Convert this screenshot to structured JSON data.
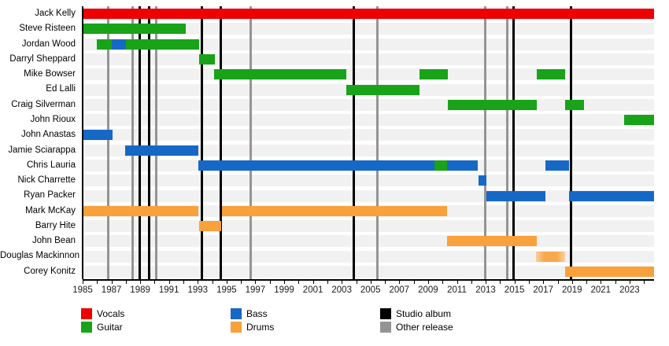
{
  "colors": {
    "vocals": "#ee0000",
    "guitar": "#18a318",
    "bass": "#1668c6",
    "drums": "#f9a13a",
    "studio_album": "#000000",
    "other_release": "#949494",
    "row_stripe": "#f1f1f1"
  },
  "chart_data": {
    "type": "timeline-gantt",
    "title": "",
    "x_axis": {
      "start": 1985,
      "end": 2024.7,
      "minor_tick_every_years": 1,
      "label_years": [
        1985,
        1987,
        1989,
        1991,
        1993,
        1995,
        1997,
        1999,
        2001,
        2003,
        2005,
        2007,
        2009,
        2011,
        2013,
        2015,
        2017,
        2019,
        2021,
        2023
      ]
    },
    "members": [
      {
        "name": "Jack Kelly",
        "segments": [
          {
            "role": "vocals",
            "start": 1985,
            "end": 2024.7
          }
        ]
      },
      {
        "name": "Steve Risteen",
        "segments": [
          {
            "role": "guitar",
            "start": 1985,
            "end": 1992.15
          }
        ]
      },
      {
        "name": "Jordan Wood",
        "segments": [
          {
            "role": "guitar",
            "start": 1986,
            "end": 1987
          },
          {
            "role": "bass",
            "start": 1987,
            "end": 1988
          },
          {
            "role": "guitar",
            "start": 1988,
            "end": 1993.1
          }
        ]
      },
      {
        "name": "Darryl Sheppard",
        "segments": [
          {
            "role": "guitar",
            "start": 1993.1,
            "end": 1994.2
          }
        ]
      },
      {
        "name": "Mike Bowser",
        "segments": [
          {
            "role": "guitar",
            "start": 1994.15,
            "end": 2003.3
          },
          {
            "role": "guitar",
            "start": 2008.4,
            "end": 2010.35
          },
          {
            "role": "guitar",
            "start": 2016.55,
            "end": 2018.5
          }
        ]
      },
      {
        "name": "Ed Lalli",
        "segments": [
          {
            "role": "guitar",
            "start": 2003.3,
            "end": 2008.4
          }
        ]
      },
      {
        "name": "Craig Silverman",
        "segments": [
          {
            "role": "guitar",
            "start": 2010.35,
            "end": 2016.55
          },
          {
            "role": "guitar",
            "start": 2018.5,
            "end": 2019.85
          }
        ]
      },
      {
        "name": "John Rioux",
        "segments": [
          {
            "role": "guitar",
            "start": 2022.6,
            "end": 2024.7
          }
        ]
      },
      {
        "name": "John Anastas",
        "segments": [
          {
            "role": "bass",
            "start": 1985,
            "end": 1987.05
          }
        ]
      },
      {
        "name": "Jamie Sciarappa",
        "segments": [
          {
            "role": "bass",
            "start": 1987.95,
            "end": 1993.05
          }
        ]
      },
      {
        "name": "Chris Lauria",
        "segments": [
          {
            "role": "bass",
            "start": 1993.05,
            "end": 2009.45
          },
          {
            "role": "guitar",
            "start": 2009.45,
            "end": 2010.3
          },
          {
            "role": "bass",
            "start": 2010.3,
            "end": 2012.45
          },
          {
            "role": "bass",
            "start": 2017.15,
            "end": 2018.8
          }
        ]
      },
      {
        "name": "Nick Charrette",
        "segments": [
          {
            "role": "bass",
            "start": 2012.5,
            "end": 2013.05
          }
        ]
      },
      {
        "name": "Ryan Packer",
        "segments": [
          {
            "role": "bass",
            "start": 2013.05,
            "end": 2017.15
          },
          {
            "role": "bass",
            "start": 2018.8,
            "end": 2024.7
          }
        ]
      },
      {
        "name": "Mark McKay",
        "segments": [
          {
            "role": "drums",
            "start": 1985,
            "end": 1993.05
          },
          {
            "role": "drums",
            "start": 1994.65,
            "end": 2010.3
          }
        ]
      },
      {
        "name": "Barry Hite",
        "segments": [
          {
            "role": "drums",
            "start": 1993.1,
            "end": 1994.65
          }
        ]
      },
      {
        "name": "John Bean",
        "segments": [
          {
            "role": "drums",
            "start": 2010.3,
            "end": 2016.55
          }
        ]
      },
      {
        "name": "Douglas Mackinnon",
        "segments": [
          {
            "role": "drums",
            "start": 2016.5,
            "end": 2018.5,
            "faded": true
          }
        ]
      },
      {
        "name": "Corey Konitz",
        "segments": [
          {
            "role": "drums",
            "start": 2018.5,
            "end": 2024.7
          }
        ]
      }
    ],
    "releases": [
      {
        "year": 1986.75,
        "type": "other_release"
      },
      {
        "year": 1988.45,
        "type": "other_release"
      },
      {
        "year": 1988.95,
        "type": "studio_album"
      },
      {
        "year": 1989.6,
        "type": "studio_album"
      },
      {
        "year": 1990.1,
        "type": "other_release"
      },
      {
        "year": 1993.3,
        "type": "studio_album"
      },
      {
        "year": 1994.6,
        "type": "studio_album"
      },
      {
        "year": 1996.65,
        "type": "other_release"
      },
      {
        "year": 2003.85,
        "type": "studio_album"
      },
      {
        "year": 2005.45,
        "type": "other_release"
      },
      {
        "year": 2012.95,
        "type": "other_release"
      },
      {
        "year": 2014.5,
        "type": "other_release"
      },
      {
        "year": 2014.95,
        "type": "studio_album"
      },
      {
        "year": 2018.95,
        "type": "studio_album"
      }
    ],
    "legend": {
      "columns": [
        {
          "items": [
            {
              "label": "Vocals",
              "color_key": "vocals"
            },
            {
              "label": "Guitar",
              "color_key": "guitar"
            }
          ]
        },
        {
          "items": [
            {
              "label": "Bass",
              "color_key": "bass"
            },
            {
              "label": "Drums",
              "color_key": "drums"
            }
          ]
        },
        {
          "items": [
            {
              "label": "Studio album",
              "color_key": "studio_album"
            },
            {
              "label": "Other release",
              "color_key": "other_release"
            }
          ]
        }
      ]
    }
  }
}
